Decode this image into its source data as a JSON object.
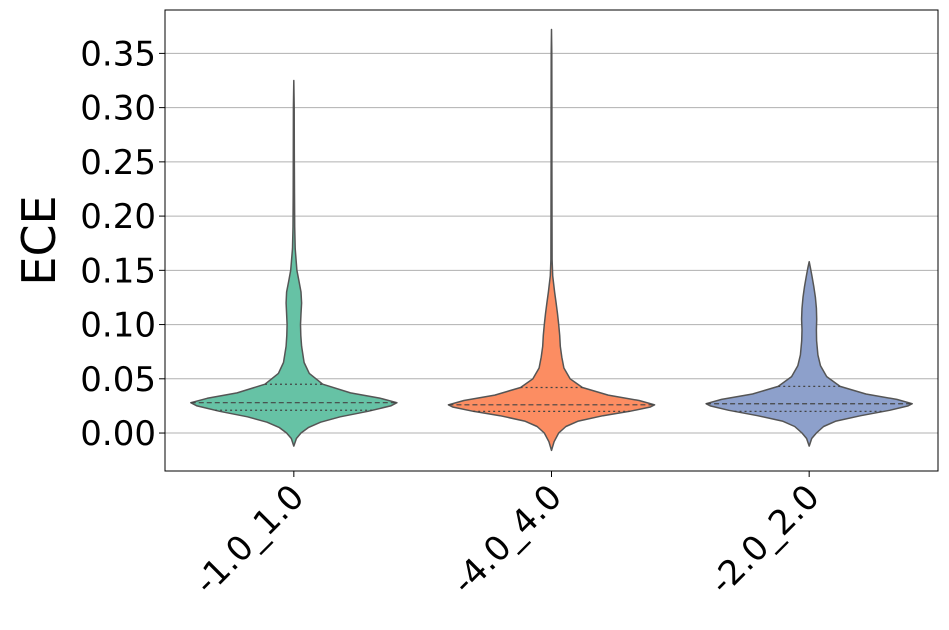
{
  "chart_data": {
    "type": "violin",
    "ylabel": "ECE",
    "xlabel": "",
    "ylim": [
      -0.035,
      0.39
    ],
    "yticks": [
      "0.00",
      "0.05",
      "0.10",
      "0.15",
      "0.20",
      "0.25",
      "0.30",
      "0.35"
    ],
    "grid": "horizontal",
    "categories": [
      "-1.0_1.0",
      "-4.0_4.0",
      "-2.0_2.0"
    ],
    "series": [
      {
        "category": "-1.0_1.0",
        "color": "#66c2a5",
        "min": -0.012,
        "max": 0.325,
        "q1": 0.021,
        "median": 0.028,
        "q3": 0.045,
        "profile": [
          [
            -0.012,
            0.0
          ],
          [
            -0.005,
            0.025
          ],
          [
            0.0,
            0.07
          ],
          [
            0.005,
            0.14
          ],
          [
            0.01,
            0.26
          ],
          [
            0.015,
            0.45
          ],
          [
            0.02,
            0.72
          ],
          [
            0.025,
            0.94
          ],
          [
            0.028,
            1.0
          ],
          [
            0.032,
            0.84
          ],
          [
            0.037,
            0.55
          ],
          [
            0.045,
            0.28
          ],
          [
            0.055,
            0.15
          ],
          [
            0.065,
            0.1
          ],
          [
            0.08,
            0.075
          ],
          [
            0.09,
            0.068
          ],
          [
            0.1,
            0.065
          ],
          [
            0.11,
            0.07
          ],
          [
            0.12,
            0.075
          ],
          [
            0.13,
            0.07
          ],
          [
            0.14,
            0.05
          ],
          [
            0.15,
            0.03
          ],
          [
            0.17,
            0.013
          ],
          [
            0.19,
            0.008
          ],
          [
            0.22,
            0.006
          ],
          [
            0.26,
            0.005
          ],
          [
            0.3,
            0.004
          ],
          [
            0.325,
            0.0
          ]
        ]
      },
      {
        "category": "-4.0_4.0",
        "color": "#fc8d62",
        "min": -0.016,
        "max": 0.372,
        "q1": 0.02,
        "median": 0.026,
        "q3": 0.042,
        "profile": [
          [
            -0.016,
            0.0
          ],
          [
            -0.008,
            0.025
          ],
          [
            0.0,
            0.07
          ],
          [
            0.006,
            0.14
          ],
          [
            0.011,
            0.26
          ],
          [
            0.016,
            0.5
          ],
          [
            0.02,
            0.76
          ],
          [
            0.024,
            0.96
          ],
          [
            0.026,
            1.0
          ],
          [
            0.03,
            0.85
          ],
          [
            0.035,
            0.55
          ],
          [
            0.042,
            0.3
          ],
          [
            0.05,
            0.18
          ],
          [
            0.06,
            0.12
          ],
          [
            0.07,
            0.1
          ],
          [
            0.08,
            0.085
          ],
          [
            0.09,
            0.08
          ],
          [
            0.1,
            0.07
          ],
          [
            0.11,
            0.058
          ],
          [
            0.12,
            0.045
          ],
          [
            0.13,
            0.03
          ],
          [
            0.145,
            0.012
          ],
          [
            0.16,
            0.006
          ],
          [
            0.2,
            0.005
          ],
          [
            0.25,
            0.004
          ],
          [
            0.3,
            0.004
          ],
          [
            0.35,
            0.003
          ],
          [
            0.372,
            0.0
          ]
        ]
      },
      {
        "category": "-2.0_2.0",
        "color": "#8da0cb",
        "min": -0.012,
        "max": 0.158,
        "q1": 0.02,
        "median": 0.027,
        "q3": 0.043,
        "profile": [
          [
            -0.012,
            0.0
          ],
          [
            -0.005,
            0.025
          ],
          [
            0.0,
            0.07
          ],
          [
            0.006,
            0.14
          ],
          [
            0.011,
            0.26
          ],
          [
            0.016,
            0.5
          ],
          [
            0.021,
            0.78
          ],
          [
            0.025,
            0.96
          ],
          [
            0.027,
            1.0
          ],
          [
            0.031,
            0.85
          ],
          [
            0.036,
            0.55
          ],
          [
            0.043,
            0.3
          ],
          [
            0.052,
            0.17
          ],
          [
            0.062,
            0.11
          ],
          [
            0.072,
            0.085
          ],
          [
            0.085,
            0.072
          ],
          [
            0.095,
            0.07
          ],
          [
            0.105,
            0.073
          ],
          [
            0.115,
            0.07
          ],
          [
            0.125,
            0.06
          ],
          [
            0.135,
            0.045
          ],
          [
            0.145,
            0.027
          ],
          [
            0.152,
            0.013
          ],
          [
            0.158,
            0.0
          ]
        ]
      }
    ]
  }
}
